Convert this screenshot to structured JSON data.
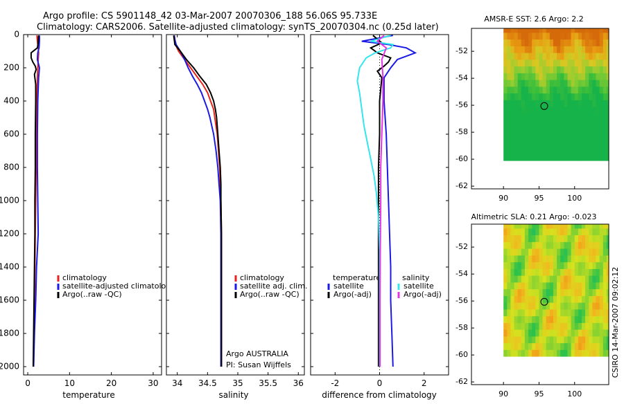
{
  "figure": {
    "title_line1": "Argo profile: CS 5901148_42 03-Mar-2007 20070306_188 56.06S 95.733E",
    "title_line2": "Climatology: CARS2006. Satellite-adjusted climatology: synTS_20070304.nc (0.25d later)",
    "footer_vertical": "CSIRO 14-Mar-2007 09:02:12"
  },
  "colors": {
    "climatology": "#e8231a",
    "satellite": "#1a1ae6",
    "argo": "#000000",
    "sal_satellite": "#33e6ee",
    "sal_argo": "#e633e6"
  },
  "depth_axis": {
    "ylim": [
      0,
      2050
    ],
    "ticks": [
      0,
      200,
      400,
      600,
      800,
      1000,
      1200,
      1400,
      1600,
      1800,
      2000
    ],
    "labels": [
      "0",
      "200",
      "400",
      "600",
      "800",
      "1000",
      "1200",
      "1400",
      "1600",
      "1800",
      "2000"
    ]
  },
  "chart_data": [
    {
      "id": "temperature",
      "type": "line",
      "xlabel": "temperature",
      "ylabel": "",
      "xlim": [
        -1,
        32
      ],
      "xticks": [
        0,
        10,
        20,
        30
      ],
      "xtick_labels": [
        "0",
        "10",
        "20",
        "30"
      ],
      "legend": {
        "placement": "middle-right",
        "entries": [
          "climatology",
          "satellite-adjusted climatology",
          "Argo(..raw -QC)"
        ]
      },
      "series": [
        {
          "name": "climatology",
          "color_key": "climatology",
          "points": [
            [
              2.2,
              5
            ],
            [
              2.3,
              40
            ],
            [
              2.5,
              80
            ],
            [
              2.6,
              110
            ],
            [
              2.5,
              150
            ],
            [
              2.4,
              200
            ],
            [
              2.3,
              260
            ],
            [
              2.2,
              400
            ],
            [
              2.1,
              600
            ],
            [
              2.0,
              800
            ],
            [
              1.9,
              1000
            ],
            [
              1.8,
              1200
            ],
            [
              1.7,
              1400
            ],
            [
              1.6,
              1600
            ],
            [
              1.5,
              1800
            ],
            [
              1.4,
              2000
            ]
          ]
        },
        {
          "name": "satellite-adjusted climatology",
          "color_key": "satellite",
          "points": [
            [
              2.8,
              5
            ],
            [
              2.8,
              40
            ],
            [
              2.7,
              80
            ],
            [
              2.4,
              110
            ],
            [
              2.3,
              150
            ],
            [
              2.8,
              200
            ],
            [
              2.6,
              260
            ],
            [
              2.4,
              400
            ],
            [
              2.3,
              600
            ],
            [
              2.3,
              800
            ],
            [
              2.4,
              1000
            ],
            [
              2.5,
              1200
            ],
            [
              2.1,
              1400
            ],
            [
              1.9,
              1600
            ],
            [
              1.6,
              1800
            ],
            [
              1.4,
              2000
            ]
          ]
        },
        {
          "name": "Argo(..raw -QC)",
          "color_key": "argo",
          "points": [
            [
              2.6,
              5
            ],
            [
              2.5,
              50
            ],
            [
              2.3,
              80
            ],
            [
              0.8,
              110
            ],
            [
              0.8,
              140
            ],
            [
              1.2,
              165
            ],
            [
              1.8,
              190
            ],
            [
              2.0,
              210
            ],
            [
              1.6,
              240
            ],
            [
              1.9,
              300
            ],
            [
              1.9,
              400
            ],
            [
              1.8,
              600
            ],
            [
              1.8,
              800
            ],
            [
              1.7,
              1000
            ],
            [
              1.7,
              1200
            ],
            [
              1.6,
              1400
            ],
            [
              1.5,
              1600
            ],
            [
              1.4,
              1800
            ],
            [
              1.3,
              2000
            ]
          ]
        }
      ]
    },
    {
      "id": "salinity",
      "type": "line",
      "xlabel": "salinity",
      "ylabel": "",
      "xlim": [
        33.82,
        36.1
      ],
      "xticks": [
        34,
        34.5,
        35,
        35.5,
        36
      ],
      "xtick_labels": [
        "34",
        "34.5",
        "35",
        "35.5",
        "36"
      ],
      "legend": {
        "placement": "middle-right",
        "entries": [
          "climatology",
          "satellite adj. clim.",
          "Argo(..raw -QC)"
        ]
      },
      "annotations": [
        "Argo AUSTRALIA",
        "PI: Susan Wijffels"
      ],
      "series": [
        {
          "name": "climatology",
          "color_key": "climatology",
          "points": [
            [
              33.95,
              5
            ],
            [
              33.96,
              30
            ],
            [
              33.97,
              60
            ],
            [
              34.02,
              100
            ],
            [
              34.12,
              150
            ],
            [
              34.22,
              200
            ],
            [
              34.32,
              250
            ],
            [
              34.42,
              300
            ],
            [
              34.5,
              350
            ],
            [
              34.55,
              400
            ],
            [
              34.6,
              450
            ],
            [
              34.62,
              500
            ],
            [
              34.66,
              600
            ],
            [
              34.68,
              700
            ],
            [
              34.7,
              800
            ],
            [
              34.71,
              900
            ],
            [
              34.72,
              1000
            ],
            [
              34.73,
              1200
            ],
            [
              34.73,
              1400
            ],
            [
              34.73,
              1600
            ],
            [
              34.73,
              1800
            ],
            [
              34.73,
              2000
            ]
          ]
        },
        {
          "name": "satellite adj. clim.",
          "color_key": "satellite",
          "points": [
            [
              33.95,
              5
            ],
            [
              33.96,
              30
            ],
            [
              33.98,
              60
            ],
            [
              34.05,
              100
            ],
            [
              34.12,
              150
            ],
            [
              34.18,
              200
            ],
            [
              34.25,
              250
            ],
            [
              34.33,
              300
            ],
            [
              34.4,
              350
            ],
            [
              34.45,
              400
            ],
            [
              34.5,
              450
            ],
            [
              34.54,
              500
            ],
            [
              34.6,
              600
            ],
            [
              34.64,
              700
            ],
            [
              34.67,
              800
            ],
            [
              34.69,
              900
            ],
            [
              34.71,
              1000
            ],
            [
              34.72,
              1200
            ],
            [
              34.72,
              1400
            ],
            [
              34.72,
              1600
            ],
            [
              34.72,
              1800
            ],
            [
              34.72,
              2000
            ]
          ]
        },
        {
          "name": "Argo(..raw -QC)",
          "color_key": "argo",
          "points": [
            [
              33.94,
              5
            ],
            [
              33.95,
              30
            ],
            [
              33.96,
              60
            ],
            [
              34.05,
              100
            ],
            [
              34.15,
              150
            ],
            [
              34.27,
              200
            ],
            [
              34.37,
              250
            ],
            [
              34.48,
              300
            ],
            [
              34.55,
              350
            ],
            [
              34.6,
              400
            ],
            [
              34.63,
              450
            ],
            [
              34.65,
              500
            ],
            [
              34.67,
              600
            ],
            [
              34.69,
              700
            ],
            [
              34.71,
              800
            ],
            [
              34.72,
              900
            ],
            [
              34.72,
              1000
            ],
            [
              34.73,
              1200
            ],
            [
              34.73,
              1400
            ],
            [
              34.73,
              1600
            ],
            [
              34.73,
              1800
            ],
            [
              34.73,
              2000
            ]
          ]
        }
      ]
    },
    {
      "id": "difference",
      "type": "line",
      "xlabel": "difference from climatology",
      "ylabel": "",
      "xlim": [
        -3.1,
        3.1
      ],
      "xticks": [
        -2,
        0,
        2
      ],
      "xtick_labels": [
        "-2",
        "0",
        "2"
      ],
      "zero_line": "dotted",
      "legend": {
        "placement": "middle",
        "headers": [
          "temperature",
          "salinity"
        ],
        "entries": [
          "satellite",
          "Argo(-adj)",
          "satellite",
          "Argo(-adj)"
        ]
      },
      "series": [
        {
          "name": "temperature satellite",
          "color_key": "satellite",
          "points": [
            [
              0.6,
              5
            ],
            [
              -0.8,
              40
            ],
            [
              0.4,
              60
            ],
            [
              1.2,
              80
            ],
            [
              1.6,
              110
            ],
            [
              0.8,
              150
            ],
            [
              0.5,
              200
            ],
            [
              0.2,
              260
            ],
            [
              0.2,
              400
            ],
            [
              0.3,
              600
            ],
            [
              0.35,
              800
            ],
            [
              0.4,
              1000
            ],
            [
              0.45,
              1200
            ],
            [
              0.5,
              1400
            ],
            [
              0.5,
              1600
            ],
            [
              0.55,
              1800
            ],
            [
              0.6,
              2000
            ]
          ]
        },
        {
          "name": "temperature Argo(-adj)",
          "color_key": "argo",
          "points": [
            [
              -0.3,
              5
            ],
            [
              0.1,
              50
            ],
            [
              -0.4,
              80
            ],
            [
              -0.1,
              110
            ],
            [
              0.5,
              140
            ],
            [
              0.4,
              165
            ],
            [
              0.2,
              190
            ],
            [
              -0.1,
              220
            ],
            [
              0.1,
              260
            ],
            [
              0.0,
              400
            ],
            [
              0.0,
              600
            ],
            [
              -0.05,
              800
            ],
            [
              -0.05,
              1000
            ],
            [
              -0.05,
              1200
            ],
            [
              -0.05,
              1400
            ],
            [
              -0.05,
              1600
            ],
            [
              -0.05,
              1800
            ],
            [
              -0.05,
              2000
            ]
          ]
        },
        {
          "name": "salinity satellite",
          "color_key": "sal_satellite",
          "points": [
            [
              0.5,
              5
            ],
            [
              -0.4,
              40
            ],
            [
              0.6,
              60
            ],
            [
              0.5,
              80
            ],
            [
              -0.2,
              110
            ],
            [
              -0.6,
              140
            ],
            [
              -0.9,
              200
            ],
            [
              -1.0,
              280
            ],
            [
              -0.9,
              350
            ],
            [
              -0.8,
              450
            ],
            [
              -0.7,
              550
            ],
            [
              -0.55,
              650
            ],
            [
              -0.4,
              750
            ],
            [
              -0.25,
              850
            ],
            [
              -0.15,
              950
            ],
            [
              -0.05,
              1100
            ],
            [
              0.0,
              1300
            ],
            [
              0.0,
              1500
            ],
            [
              0.0,
              1800
            ],
            [
              0.0,
              2000
            ]
          ]
        },
        {
          "name": "salinity Argo(-adj)",
          "color_key": "sal_argo",
          "points": [
            [
              0.2,
              5
            ],
            [
              -0.1,
              40
            ],
            [
              0.3,
              80
            ],
            [
              0.1,
              150
            ],
            [
              0.15,
              250
            ],
            [
              0.15,
              400
            ],
            [
              0.1,
              600
            ],
            [
              0.05,
              800
            ],
            [
              0.05,
              1000
            ],
            [
              0.03,
              1300
            ],
            [
              0.02,
              1600
            ],
            [
              0.02,
              2000
            ]
          ]
        }
      ]
    },
    {
      "id": "sst_map",
      "type": "heatmap",
      "title": "AMSR-E SST: 2.6 Argo: 2.2",
      "xlim": [
        85.5,
        104.8
      ],
      "ylim": [
        -62.2,
        -50.3
      ],
      "data_extent": {
        "lon": [
          90,
          104.8
        ],
        "lat": [
          -60.1,
          -50.3
        ]
      },
      "xticks": [
        90,
        95,
        100
      ],
      "xtick_labels": [
        "90",
        "95",
        "100"
      ],
      "yticks": [
        -52,
        -54,
        -56,
        -58,
        -60,
        -62
      ],
      "ytick_labels": [
        "-52",
        "-54",
        "-56",
        "-58",
        "-60",
        "-62"
      ],
      "float_position": {
        "lon": 95.733,
        "lat": -56.06
      },
      "palette": [
        "#16b24a",
        "#3fbf3a",
        "#8ccd32",
        "#d8c822",
        "#e89c12",
        "#d56a0a"
      ]
    },
    {
      "id": "sla_map",
      "type": "heatmap",
      "title": "Altimetric SLA: 0.21 Argo: -0.023",
      "xlim": [
        85.5,
        104.8
      ],
      "ylim": [
        -62.2,
        -50.3
      ],
      "data_extent": {
        "lon": [
          90,
          104.8
        ],
        "lat": [
          -60.1,
          -50.3
        ]
      },
      "xticks": [
        90,
        95,
        100
      ],
      "xtick_labels": [
        "90",
        "95",
        "100"
      ],
      "yticks": [
        -52,
        -54,
        -56,
        -58,
        -60,
        -62
      ],
      "ytick_labels": [
        "-52",
        "-54",
        "-56",
        "-58",
        "-60",
        "-62"
      ],
      "float_position": {
        "lon": 95.733,
        "lat": -56.06
      },
      "palette": [
        "#18b48c",
        "#2ec248",
        "#7fd032",
        "#d6e21e",
        "#f0b81e",
        "#ee7c14"
      ]
    }
  ]
}
